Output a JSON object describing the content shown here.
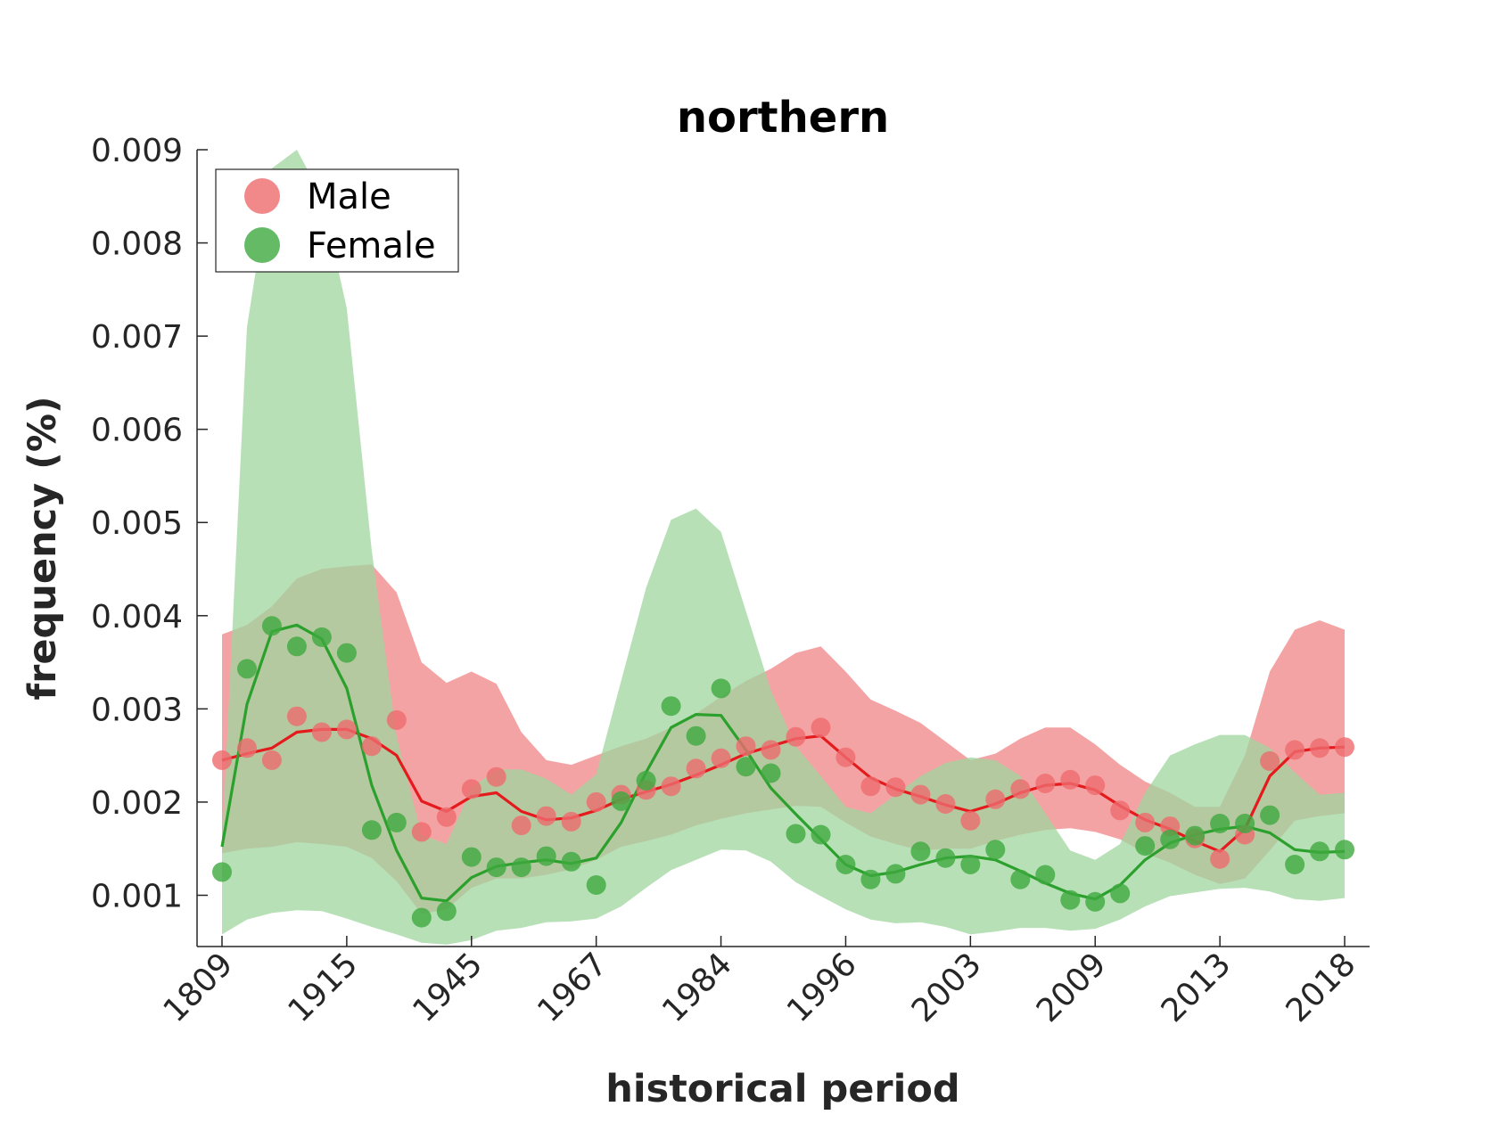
{
  "chart_data": {
    "type": "line",
    "title": "northern",
    "xlabel": "historical period",
    "ylabel": "frequency (%)",
    "xticklabels": [
      "1809",
      "1915",
      "1945",
      "1967",
      "1984",
      "1996",
      "2003",
      "2009",
      "2013",
      "2018"
    ],
    "xtick_positions": [
      0,
      5,
      10,
      15,
      20,
      25,
      30,
      35,
      40,
      45
    ],
    "xlim": [
      -1,
      46
    ],
    "ylim": [
      0.00045,
      0.009
    ],
    "yticks": [
      0.001,
      0.002,
      0.003,
      0.004,
      0.005,
      0.006,
      0.007,
      0.008,
      0.009
    ],
    "yticklabels": [
      "0.001",
      "0.002",
      "0.003",
      "0.004",
      "0.005",
      "0.006",
      "0.007",
      "0.008",
      "0.009"
    ],
    "legend_position": "top-left",
    "series": [
      {
        "name": "Male",
        "color": "#e41a1c",
        "point_color": "#ee6c6e",
        "band_color": "#f4a3a4",
        "points": [
          0.00245,
          0.00258,
          0.00245,
          0.00292,
          0.00275,
          0.00278,
          0.0026,
          0.00288,
          0.00168,
          0.00184,
          0.00214,
          0.00227,
          0.00175,
          0.00185,
          0.00179,
          0.002,
          0.00208,
          0.00213,
          0.00217,
          0.00236,
          0.00247,
          0.0026,
          0.00256,
          0.0027,
          0.0028,
          0.00248,
          0.00217,
          0.00216,
          0.00208,
          0.00198,
          0.0018,
          0.00203,
          0.00214,
          0.0022,
          0.00224,
          0.00218,
          0.00191,
          0.00178,
          0.00174,
          0.00161,
          0.00139,
          0.00165,
          0.00244,
          0.00256,
          0.00258,
          0.00259
        ],
        "smooth": [
          0.00245,
          0.00252,
          0.00258,
          0.00275,
          0.00278,
          0.00278,
          0.00268,
          0.0025,
          0.00201,
          0.0019,
          0.00206,
          0.0021,
          0.0019,
          0.00181,
          0.00183,
          0.00191,
          0.00203,
          0.00211,
          0.00219,
          0.00229,
          0.0024,
          0.00252,
          0.0026,
          0.00268,
          0.00271,
          0.00248,
          0.00226,
          0.00214,
          0.00206,
          0.00197,
          0.0019,
          0.00198,
          0.0021,
          0.00218,
          0.0022,
          0.00213,
          0.00196,
          0.00181,
          0.00171,
          0.00158,
          0.00147,
          0.00171,
          0.00228,
          0.00254,
          0.00258,
          0.00259
        ],
        "band_upper": [
          0.0038,
          0.0039,
          0.0041,
          0.0044,
          0.0045,
          0.00453,
          0.00455,
          0.00425,
          0.0035,
          0.00328,
          0.0034,
          0.00327,
          0.00275,
          0.00245,
          0.0024,
          0.0025,
          0.0026,
          0.00268,
          0.0028,
          0.00295,
          0.00313,
          0.0033,
          0.00343,
          0.0036,
          0.00367,
          0.0034,
          0.0031,
          0.00298,
          0.00285,
          0.00265,
          0.00245,
          0.00252,
          0.00268,
          0.0028,
          0.0028,
          0.00262,
          0.0024,
          0.00222,
          0.0021,
          0.00195,
          0.00195,
          0.0025,
          0.0034,
          0.00385,
          0.00395,
          0.00385
        ],
        "band_lower": [
          0.00145,
          0.0015,
          0.00152,
          0.00157,
          0.00155,
          0.00152,
          0.0014,
          0.00115,
          0.0008,
          0.00085,
          0.00108,
          0.00118,
          0.00118,
          0.00122,
          0.00128,
          0.00138,
          0.00152,
          0.00158,
          0.00165,
          0.00175,
          0.00182,
          0.00188,
          0.00192,
          0.00196,
          0.00195,
          0.00178,
          0.00163,
          0.00155,
          0.00148,
          0.0015,
          0.0015,
          0.00158,
          0.00165,
          0.0017,
          0.00172,
          0.00168,
          0.0016,
          0.00145,
          0.00135,
          0.00122,
          0.00112,
          0.00118,
          0.00148,
          0.0018,
          0.00185,
          0.00188
        ]
      },
      {
        "name": "Female",
        "color": "#2ca02c",
        "point_color": "#3fa93f",
        "band_color": "#9fd69f",
        "points": [
          0.00125,
          0.00343,
          0.00389,
          0.00367,
          0.00377,
          0.0036,
          0.0017,
          0.00178,
          0.00076,
          0.00083,
          0.00141,
          0.0013,
          0.0013,
          0.00142,
          0.00136,
          0.00111,
          0.00201,
          0.00223,
          0.00303,
          0.00271,
          0.00322,
          0.00238,
          0.00231,
          0.00166,
          0.00165,
          0.00133,
          0.00117,
          0.00123,
          0.00147,
          0.0014,
          0.00133,
          0.00149,
          0.00117,
          0.00122,
          0.00095,
          0.00093,
          0.00102,
          0.00153,
          0.0016,
          0.00164,
          0.00177,
          0.00177,
          0.00186,
          0.00133,
          0.00147,
          0.00149
        ],
        "smooth": [
          0.00152,
          0.00305,
          0.00383,
          0.0039,
          0.00375,
          0.00322,
          0.00218,
          0.00148,
          0.00097,
          0.00094,
          0.00119,
          0.00131,
          0.00135,
          0.00138,
          0.00134,
          0.0014,
          0.00178,
          0.00232,
          0.0028,
          0.00294,
          0.00293,
          0.00256,
          0.00215,
          0.00187,
          0.0016,
          0.00133,
          0.00121,
          0.00125,
          0.00133,
          0.0014,
          0.00142,
          0.00138,
          0.00126,
          0.00113,
          0.00102,
          0.00096,
          0.00111,
          0.00138,
          0.00156,
          0.00165,
          0.00171,
          0.00174,
          0.00167,
          0.00149,
          0.00146,
          0.00147
        ],
        "band_upper": [
          0.00155,
          0.0071,
          0.0088,
          0.009,
          0.0085,
          0.0073,
          0.0047,
          0.0027,
          0.00165,
          0.00155,
          0.00215,
          0.00235,
          0.00235,
          0.00225,
          0.00208,
          0.0023,
          0.0033,
          0.0043,
          0.00503,
          0.00515,
          0.0049,
          0.00405,
          0.0032,
          0.0026,
          0.00228,
          0.00195,
          0.00188,
          0.00208,
          0.00228,
          0.00242,
          0.00248,
          0.00245,
          0.00228,
          0.00188,
          0.00148,
          0.00138,
          0.00155,
          0.0021,
          0.0025,
          0.00262,
          0.00272,
          0.00272,
          0.00258,
          0.00232,
          0.00208,
          0.0021
        ],
        "band_lower": [
          0.00058,
          0.00074,
          0.00081,
          0.00084,
          0.00083,
          0.00075,
          0.00066,
          0.00058,
          0.00049,
          0.00047,
          0.00052,
          0.00062,
          0.00065,
          0.00071,
          0.00072,
          0.00075,
          0.00088,
          0.00108,
          0.00127,
          0.00138,
          0.00149,
          0.00148,
          0.00136,
          0.00114,
          0.00099,
          0.00085,
          0.00074,
          0.0007,
          0.00071,
          0.00066,
          0.00058,
          0.00061,
          0.00065,
          0.00065,
          0.00062,
          0.00064,
          0.00074,
          0.00088,
          0.00099,
          0.00103,
          0.00107,
          0.00108,
          0.00104,
          0.00096,
          0.00094,
          0.00097
        ]
      }
    ]
  }
}
